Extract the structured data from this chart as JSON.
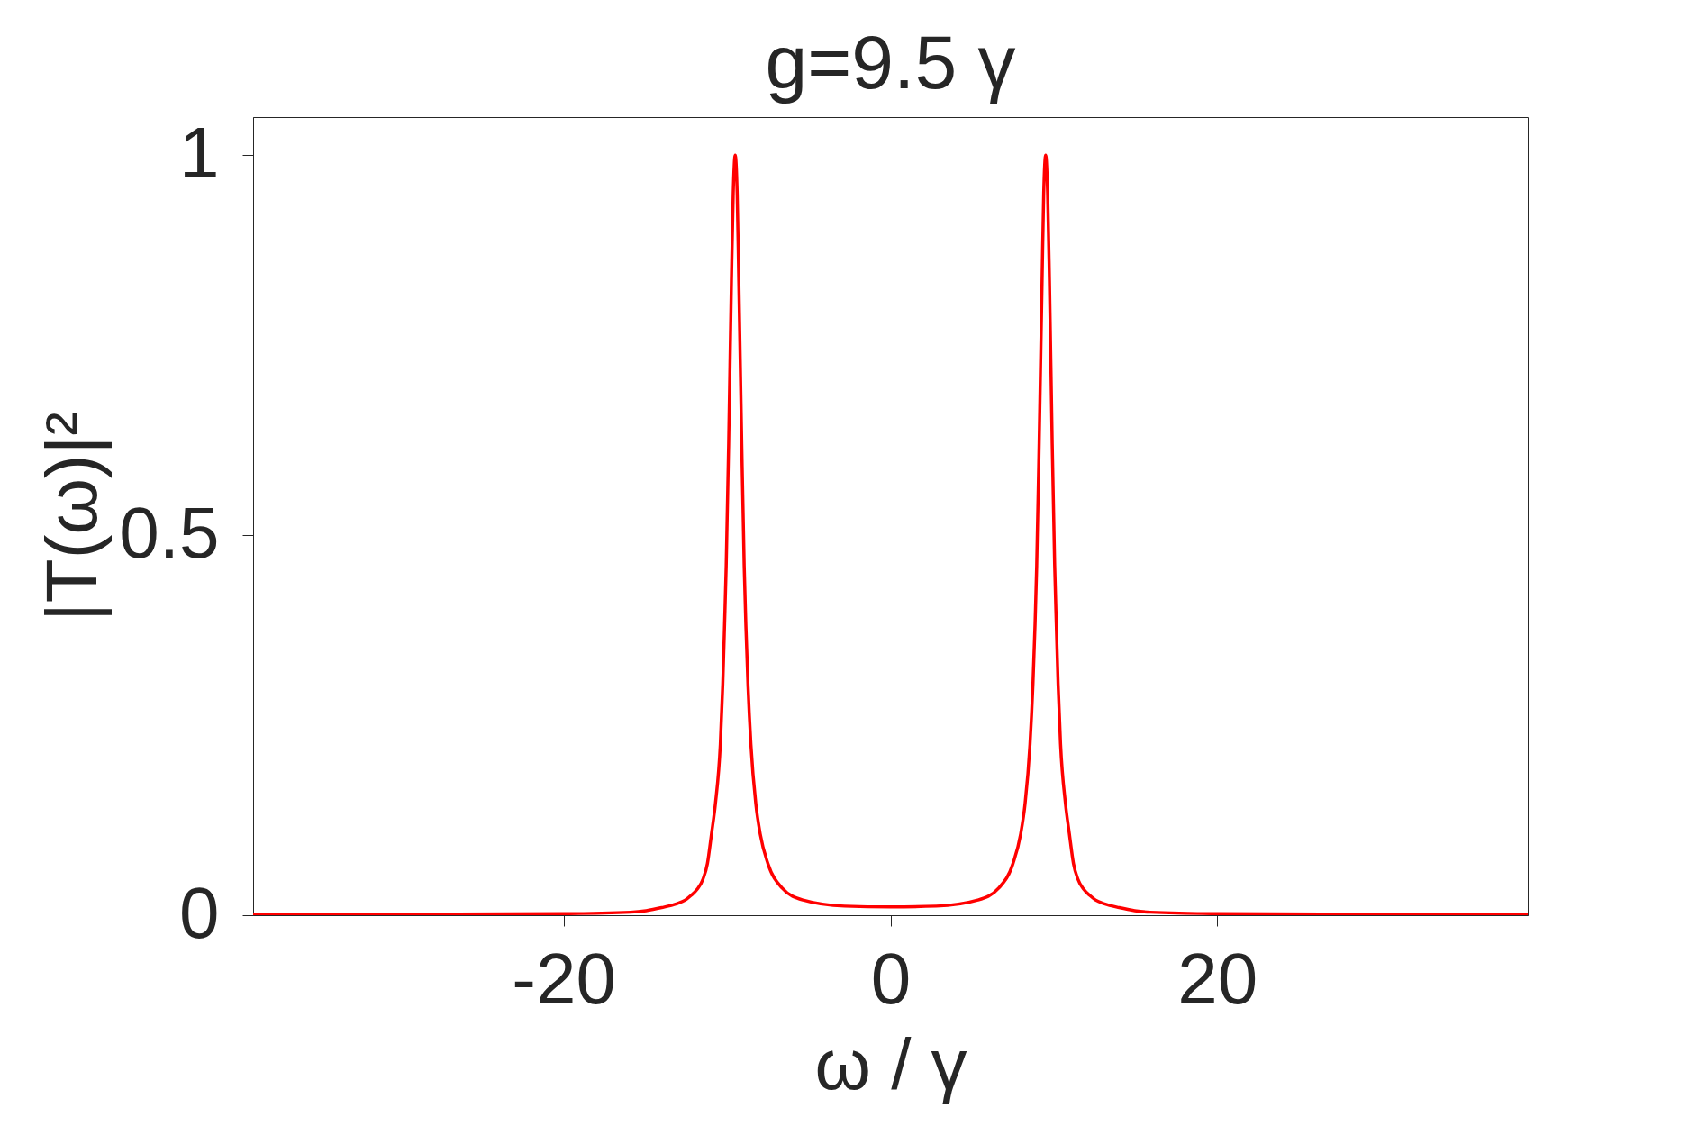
{
  "chart_data": {
    "type": "line",
    "title": "g=9.5 γ",
    "xlabel": "ω / γ",
    "ylabel": "|T(ω)|²",
    "x": [
      -39,
      -30,
      -20,
      -15.9,
      -14.95,
      -14.0,
      -13.1,
      -12.55,
      -12.2,
      -11.83,
      -11.46,
      -11.2,
      -10.95,
      -10.71,
      -10.41,
      -10.26,
      -10.15,
      -10.05,
      -9.9,
      -9.73,
      -9.62,
      -9.5,
      -9.38,
      -9.28,
      -9.1,
      -8.95,
      -8.85,
      -8.72,
      -8.54,
      -8.24,
      -7.97,
      -7.5,
      -6.64,
      -5.35,
      -2.8,
      0,
      2.8,
      5.35,
      6.64,
      7.5,
      7.97,
      8.24,
      8.54,
      8.72,
      8.85,
      8.95,
      9.1,
      9.28,
      9.38,
      9.5,
      9.62,
      9.73,
      9.9,
      10.05,
      10.15,
      10.26,
      10.41,
      10.71,
      10.95,
      11.2,
      11.46,
      11.83,
      12.2,
      12.55,
      13.1,
      14.0,
      14.95,
      15.9,
      20,
      30,
      39
    ],
    "series": [
      {
        "color": "#ff0000",
        "values": [
          0.001,
          0.001,
          0.002,
          0.004,
          0.006,
          0.01,
          0.015,
          0.02,
          0.026,
          0.034,
          0.048,
          0.068,
          0.107,
          0.147,
          0.225,
          0.304,
          0.383,
          0.46,
          0.62,
          0.835,
          0.95,
          1,
          0.95,
          0.835,
          0.62,
          0.46,
          0.383,
          0.304,
          0.225,
          0.147,
          0.107,
          0.068,
          0.036,
          0.02,
          0.012,
          0.011,
          0.012,
          0.02,
          0.036,
          0.068,
          0.107,
          0.147,
          0.225,
          0.304,
          0.383,
          0.46,
          0.62,
          0.835,
          0.95,
          1,
          0.95,
          0.835,
          0.62,
          0.46,
          0.383,
          0.304,
          0.225,
          0.147,
          0.107,
          0.068,
          0.048,
          0.034,
          0.026,
          0.02,
          0.015,
          0.01,
          0.006,
          0.004,
          0.002,
          0.001,
          0.001
        ]
      }
    ],
    "xlim": [
      -39,
      39
    ],
    "ylim": [
      0,
      1.05
    ],
    "xticks": [
      -20,
      0,
      20
    ],
    "yticks": [
      0,
      0.5,
      1
    ],
    "line_style": "solid"
  }
}
